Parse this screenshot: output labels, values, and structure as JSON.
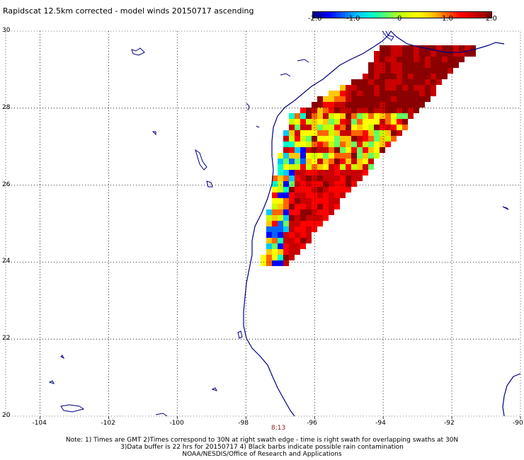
{
  "title": "Rapidscat 12.5km corrected - model winds 20150717 ascending",
  "colorbar": {
    "ticks": [
      "-2.0",
      "-1.0",
      "0",
      "1.0",
      "2.0"
    ],
    "colors": [
      "#00008b",
      "#0000ff",
      "#0064ff",
      "#00c8ff",
      "#00ffc8",
      "#64ff64",
      "#c8ff00",
      "#ffff00",
      "#ffc800",
      "#ff6400",
      "#ff0000",
      "#c80000",
      "#8b0000"
    ]
  },
  "map": {
    "lat_labels": [
      "30",
      "28",
      "26",
      "24",
      "22",
      "20"
    ],
    "lon_labels": [
      "-104",
      "-102",
      "-100",
      "-98",
      "-96",
      "-94",
      "-92",
      "-90"
    ],
    "time_label": "8:13",
    "coast_color": "#00007f",
    "grid_color": "#000000"
  },
  "notes": [
    "Note: 1) Times are GMT 2)Times correspond to 30N at right swath edge - time is right swath for overlapping swaths at 30N",
    "3)Data buffer is 22 hrs for 20150717 4) Black barbs indicate possible rain contamination",
    "NOAA/NESDIS/Office of Research and Applications"
  ]
}
